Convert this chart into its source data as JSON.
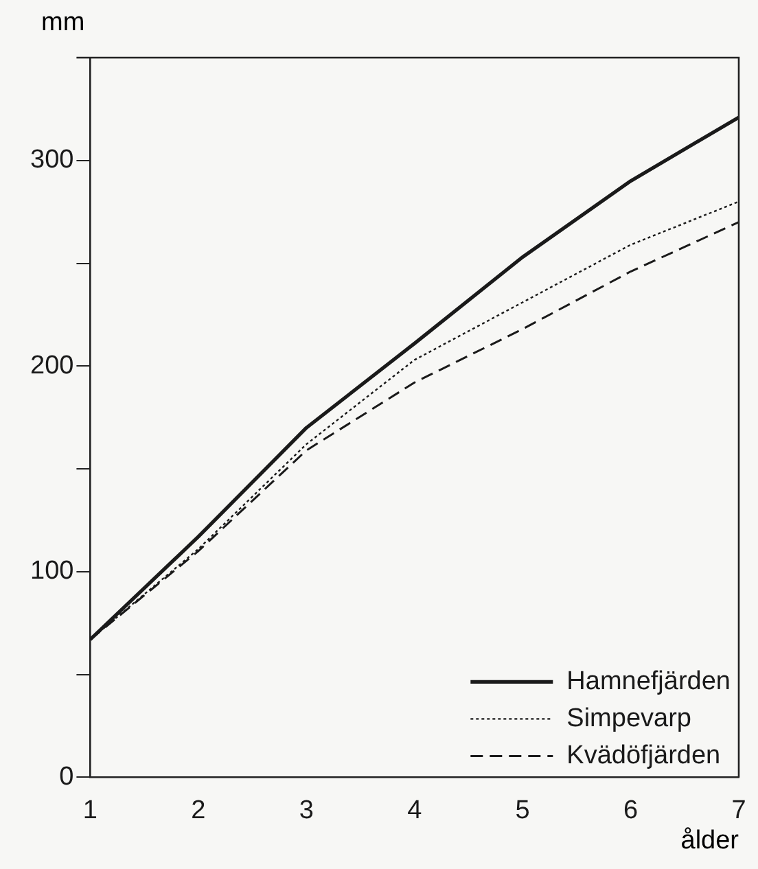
{
  "chart_data": {
    "type": "line",
    "xlabel": "ålder",
    "ylabel": "mm",
    "x": [
      1,
      2,
      3,
      4,
      5,
      6,
      7
    ],
    "series": [
      {
        "name": "Hamnefjärden",
        "color": "#1a1a1a",
        "line_style": "solid",
        "values": [
          67,
          117,
          170,
          211,
          253,
          290,
          321
        ]
      },
      {
        "name": "Simpevarp",
        "color": "#1a1a1a",
        "line_style": "dotted",
        "values": [
          67,
          111,
          162,
          203,
          231,
          259,
          280
        ]
      },
      {
        "name": "Kvädöfjärden",
        "color": "#1a1a1a",
        "line_style": "dashed",
        "values": [
          67,
          110,
          159,
          192,
          218,
          246,
          270
        ]
      }
    ],
    "xlim": [
      1,
      7
    ],
    "xticks": [
      1,
      2,
      3,
      4,
      5,
      6,
      7
    ],
    "ylim": [
      0,
      350
    ],
    "yticks": [
      0,
      {
        "value": 50,
        "label": null
      },
      100,
      {
        "value": 150,
        "label": null
      },
      200,
      {
        "value": 250,
        "label": null
      },
      300
    ],
    "grid": false,
    "legend": "bottom right",
    "marker": "none"
  }
}
